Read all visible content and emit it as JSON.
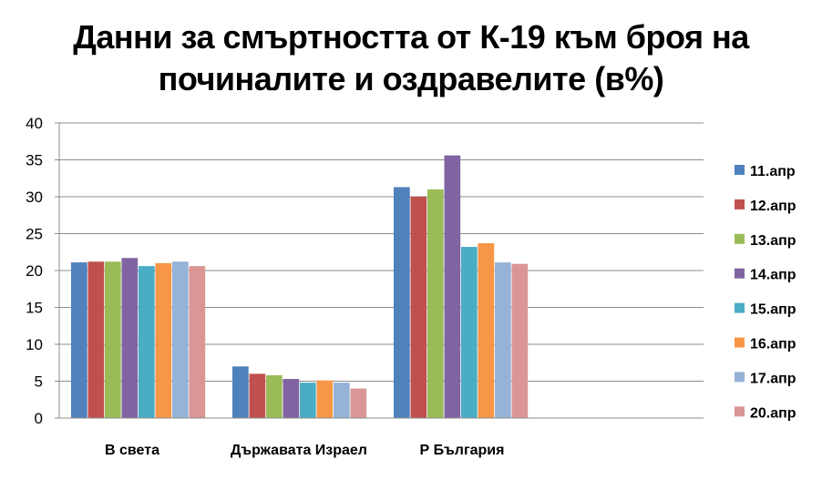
{
  "chart_data": {
    "type": "bar",
    "title_lines": [
      "Данни за смъртността от К-19 към броя на",
      "починалите и оздравелите (в%)"
    ],
    "categories": [
      "В света",
      "Държавата Израел",
      "Р България"
    ],
    "ylim": [
      0,
      40
    ],
    "yticks": [
      0,
      5,
      10,
      15,
      20,
      25,
      30,
      35,
      40
    ],
    "grid": true,
    "legend_position": "right",
    "series": [
      {
        "name": "11.апр",
        "color": "#4F81BD",
        "values": [
          21.1,
          7.0,
          31.3
        ]
      },
      {
        "name": "12.апр",
        "color": "#C0504D",
        "values": [
          21.2,
          6.0,
          30.0
        ]
      },
      {
        "name": "13.апр",
        "color": "#9BBB59",
        "values": [
          21.2,
          5.8,
          31.0
        ]
      },
      {
        "name": "14.апр",
        "color": "#8064A2",
        "values": [
          21.7,
          5.3,
          35.6
        ]
      },
      {
        "name": "15.апр",
        "color": "#4BACC6",
        "values": [
          20.6,
          4.8,
          23.2
        ]
      },
      {
        "name": "16.апр",
        "color": "#F79646",
        "values": [
          21.0,
          5.1,
          23.7
        ]
      },
      {
        "name": "17.апр",
        "color": "#95B3D7",
        "values": [
          21.2,
          4.8,
          21.1
        ]
      },
      {
        "name": "20.апр",
        "color": "#D99694",
        "values": [
          20.6,
          4.0,
          20.9
        ]
      }
    ]
  }
}
